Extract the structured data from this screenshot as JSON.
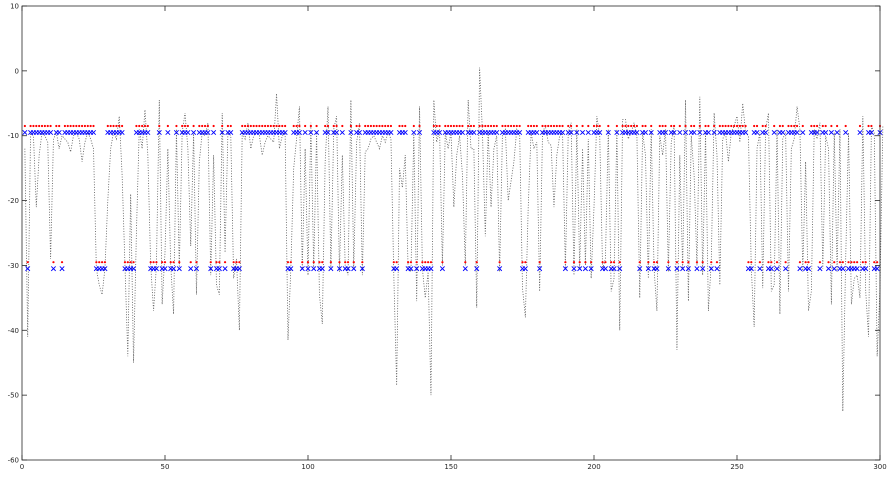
{
  "chart_data": {
    "type": "scatter",
    "title": "",
    "xlabel": "",
    "ylabel": "",
    "xlim": [
      0,
      300
    ],
    "ylim": [
      -60,
      10
    ],
    "xticks": [
      0,
      50,
      100,
      150,
      200,
      250,
      300
    ],
    "yticks": [
      -60,
      -50,
      -40,
      -30,
      -20,
      -10,
      0,
      10
    ],
    "xtick_labels": [
      "0",
      "50",
      "100",
      "150",
      "200",
      "250",
      "300"
    ],
    "ytick_labels": [
      "-60",
      "-50",
      "-40",
      "-30",
      "-20",
      "-10",
      "0",
      "10"
    ],
    "grid": false,
    "legend": "none",
    "series": [
      {
        "style": "dotted-line",
        "color": "#555555",
        "values": [
          -12,
          -41,
          -9.5,
          -10,
          -21,
          -13,
          -9.5,
          -10,
          -11,
          -29,
          -10.5,
          -9.5,
          -12,
          -10,
          -10.5,
          -11,
          -12.5,
          -10,
          -9.5,
          -10.5,
          -14,
          -11,
          -9.5,
          -10.5,
          -12,
          -30.5,
          -33,
          -34.5,
          -30.5,
          -20,
          -12,
          -9.5,
          -10.5,
          -7,
          -16,
          -30,
          -44,
          -19,
          -45,
          -25,
          -9,
          -12,
          -6,
          -13,
          -30,
          -37,
          -30,
          -4.5,
          -36,
          -28,
          -12,
          -30,
          -37.5,
          -9,
          -30.5,
          -9.5,
          -6.5,
          -12,
          -27,
          -9.5,
          -34.5,
          -14,
          -9.5,
          -10,
          -8,
          -31.5,
          -13,
          -33,
          -34.5,
          -6.5,
          -28,
          -9.5,
          -10,
          -32,
          -29,
          -40,
          -9.5,
          -10.5,
          -8,
          -12,
          -10,
          -9.5,
          -10,
          -13,
          -11,
          -10,
          -10.5,
          -11,
          -3.5,
          -12,
          -10,
          -9.5,
          -41.5,
          -30.5,
          -15,
          -10.5,
          -5.5,
          -30.5,
          -12,
          -31.5,
          -8,
          -30.5,
          -9.5,
          -34.5,
          -39,
          -14,
          -5.5,
          -30.5,
          -9,
          -7,
          -31,
          -13,
          -30,
          -31.5,
          -4.5,
          -30.5,
          -11,
          -8,
          -31.5,
          -12.5,
          -12,
          -10.5,
          -10,
          -11,
          -12,
          -10,
          -11,
          -9.5,
          -10.5,
          -31.5,
          -48.5,
          -15,
          -18,
          -13,
          -30.5,
          -31,
          -9.5,
          -35.5,
          -5.5,
          -30.5,
          -35,
          -31,
          -50,
          -4.5,
          -11,
          -9,
          -30,
          -9.5,
          -12,
          -9.5,
          -21,
          -13,
          -10,
          -16,
          -30,
          -4.5,
          -12,
          -12,
          -36.5,
          0.5,
          -9.5,
          -25.5,
          -9.5,
          -21,
          -12,
          -10,
          -31,
          -9.5,
          -9,
          -20,
          -17,
          -14,
          -9,
          -9.5,
          -33.5,
          -38,
          -21,
          -9.5,
          -12,
          -11,
          -34,
          -9.5,
          -8.5,
          -11,
          -11.5,
          -21,
          -13,
          -10,
          -9.5,
          -30.5,
          -9.5,
          -8,
          -31.5,
          -9,
          -30.5,
          -12,
          -30,
          -10.5,
          -32,
          -21,
          -7,
          -10,
          -30.5,
          -29,
          -9,
          -34,
          -32,
          -9,
          -40,
          -7.5,
          -7.5,
          -10.5,
          -9.5,
          -8,
          -10,
          -35,
          -9.5,
          -13,
          -32,
          -9,
          -30.5,
          -37,
          -10,
          -13,
          -9,
          -31,
          -11,
          -8.5,
          -43,
          -13,
          -30.5,
          -4.5,
          -35.5,
          -10,
          -16,
          -30,
          -4,
          -31.5,
          -9.5,
          -37,
          -29.5,
          -6.5,
          -13,
          -33,
          -10.5,
          -9.5,
          -14,
          -9.5,
          -8.5,
          -7,
          -11,
          -5,
          -9.5,
          -10,
          -30.5,
          -39.5,
          -12,
          -9.5,
          -33.5,
          -9,
          -6.5,
          -34,
          -33,
          -9,
          -37.5,
          -10.5,
          -9.5,
          -34,
          -12,
          -10.5,
          -5.5,
          -9,
          -31,
          -14,
          -37,
          -34,
          -9,
          -10.5,
          -8,
          -30.5,
          -10,
          -12,
          -36,
          -9.5,
          -31,
          -9,
          -52.5,
          -29,
          -9.5,
          -36,
          -32,
          -31.5,
          -35,
          -7,
          -34,
          -41,
          -8.5,
          -9.5,
          -44,
          -33.5,
          -8.5
        ]
      },
      {
        "style": "blue-x-markers",
        "color": "#0000ff",
        "values": [
          -9.5,
          -30.5,
          -9.5,
          -9.5,
          -9.5,
          -9.5,
          -9.5,
          -9.5,
          -9.5,
          -9.5,
          -30.5,
          -9.5,
          -9.5,
          -30.5,
          -9.5,
          -9.5,
          -9.5,
          -9.5,
          -9.5,
          -9.5,
          -9.5,
          -9.5,
          -9.5,
          -9.5,
          -9.5,
          -30.5,
          -30.5,
          -30.5,
          -30.5,
          -9.5,
          -9.5,
          -9.5,
          -9.5,
          -9.5,
          -9.5,
          -30.5,
          -30.5,
          -30.5,
          -30.5,
          -9.5,
          -9.5,
          -9.5,
          -9.5,
          -9.5,
          -30.5,
          -30.5,
          -30.5,
          -9.5,
          -30.5,
          -30.5,
          -9.5,
          -30.5,
          -30.5,
          -9.5,
          -30.5,
          -9.5,
          -9.5,
          -9.5,
          -30.5,
          -9.5,
          -30.5,
          -9.5,
          -9.5,
          -9.5,
          -9.5,
          -30.5,
          -9.5,
          -30.5,
          -30.5,
          -9.5,
          -30.5,
          -9.5,
          -9.5,
          -30.5,
          -30.5,
          -30.5,
          -9.5,
          -9.5,
          -9.5,
          -9.5,
          -9.5,
          -9.5,
          -9.5,
          -9.5,
          -9.5,
          -9.5,
          -9.5,
          -9.5,
          -9.5,
          -9.5,
          -9.5,
          -9.5,
          -30.5,
          -30.5,
          -9.5,
          -9.5,
          -9.5,
          -30.5,
          -9.5,
          -30.5,
          -9.5,
          -30.5,
          -9.5,
          -30.5,
          -30.5,
          -9.5,
          -9.5,
          -30.5,
          -9.5,
          -9.5,
          -30.5,
          -9.5,
          -30.5,
          -30.5,
          -9.5,
          -30.5,
          -9.5,
          -9.5,
          -30.5,
          -9.5,
          -9.5,
          -9.5,
          -9.5,
          -9.5,
          -9.5,
          -9.5,
          -9.5,
          -9.5,
          -9.5,
          -30.5,
          -30.5,
          -9.5,
          -9.5,
          -9.5,
          -30.5,
          -30.5,
          -9.5,
          -30.5,
          -9.5,
          -30.5,
          -30.5,
          -30.5,
          -30.5,
          -9.5,
          -9.5,
          -9.5,
          -30.5,
          -9.5,
          -9.5,
          -9.5,
          -9.5,
          -9.5,
          -9.5,
          -9.5,
          -30.5,
          -9.5,
          -9.5,
          -9.5,
          -30.5,
          -9.5,
          -9.5,
          -9.5,
          -9.5,
          -9.5,
          -9.5,
          -9.5,
          -30.5,
          -9.5,
          -9.5,
          -9.5,
          -9.5,
          -9.5,
          -9.5,
          -9.5,
          -30.5,
          -30.5,
          -9.5,
          -9.5,
          -9.5,
          -9.5,
          -30.5,
          -9.5,
          -9.5,
          -9.5,
          -9.5,
          -9.5,
          -9.5,
          -9.5,
          -9.5,
          -30.5,
          -9.5,
          -9.5,
          -30.5,
          -9.5,
          -30.5,
          -9.5,
          -30.5,
          -9.5,
          -30.5,
          -9.5,
          -9.5,
          -9.5,
          -30.5,
          -30.5,
          -9.5,
          -30.5,
          -30.5,
          -9.5,
          -30.5,
          -9.5,
          -9.5,
          -9.5,
          -9.5,
          -9.5,
          -9.5,
          -30.5,
          -9.5,
          -9.5,
          -30.5,
          -9.5,
          -30.5,
          -30.5,
          -9.5,
          -9.5,
          -9.5,
          -30.5,
          -9.5,
          -9.5,
          -30.5,
          -9.5,
          -30.5,
          -9.5,
          -30.5,
          -9.5,
          -9.5,
          -30.5,
          -9.5,
          -30.5,
          -9.5,
          -9.5,
          -30.5,
          -9.5,
          -30.5,
          -9.5,
          -9.5,
          -9.5,
          -9.5,
          -9.5,
          -9.5,
          -9.5,
          -9.5,
          -9.5,
          -9.5,
          -30.5,
          -30.5,
          -9.5,
          -9.5,
          -30.5,
          -9.5,
          -9.5,
          -30.5,
          -30.5,
          -9.5,
          -30.5,
          -9.5,
          -9.5,
          -30.5,
          -9.5,
          -9.5,
          -9.5,
          -9.5,
          -30.5,
          -9.5,
          -30.5,
          -30.5,
          -9.5,
          -9.5,
          -9.5,
          -30.5,
          -9.5,
          -9.5,
          -30.5,
          -9.5,
          -30.5,
          -9.5,
          -30.5,
          -30.5,
          -9.5,
          -30.5,
          -30.5,
          -30.5,
          -30.5,
          -9.5,
          -30.5,
          -30.5,
          -9.5,
          -9.5,
          -30.5,
          -30.5,
          -9.5
        ]
      },
      {
        "style": "red-dot-markers",
        "color": "#ff0000",
        "values": [
          -8.5,
          -29.5,
          -8.5,
          -8.5,
          -8.5,
          -8.5,
          -8.5,
          -8.5,
          -8.5,
          -8.5,
          -29.5,
          -8.5,
          -8.5,
          -29.5,
          -8.5,
          -8.5,
          -8.5,
          -8.5,
          -8.5,
          -8.5,
          -8.5,
          -8.5,
          -8.5,
          -8.5,
          -8.5,
          -29.5,
          -29.5,
          -29.5,
          -29.5,
          -8.5,
          -8.5,
          -8.5,
          -8.5,
          -8.5,
          -8.5,
          -29.5,
          -29.5,
          -29.5,
          -29.5,
          -8.5,
          -8.5,
          -8.5,
          -8.5,
          -8.5,
          -29.5,
          -29.5,
          -29.5,
          -8.5,
          -29.5,
          -29.5,
          -8.5,
          -29.5,
          -29.5,
          -8.5,
          -29.5,
          -8.5,
          -8.5,
          -8.5,
          -29.5,
          -8.5,
          -29.5,
          -8.5,
          -8.5,
          -8.5,
          -8.5,
          -29.5,
          -8.5,
          -29.5,
          -29.5,
          -8.5,
          -29.5,
          -8.5,
          -8.5,
          -29.5,
          -29.5,
          -29.5,
          -8.5,
          -8.5,
          -8.5,
          -8.5,
          -8.5,
          -8.5,
          -8.5,
          -8.5,
          -8.5,
          -8.5,
          -8.5,
          -8.5,
          -8.5,
          -8.5,
          -8.5,
          -8.5,
          -29.5,
          -29.5,
          -8.5,
          -8.5,
          -8.5,
          -29.5,
          -8.5,
          -29.5,
          -8.5,
          -29.5,
          -8.5,
          -29.5,
          -29.5,
          -8.5,
          -8.5,
          -29.5,
          -8.5,
          -8.5,
          -29.5,
          -8.5,
          -29.5,
          -29.5,
          -8.5,
          -29.5,
          -8.5,
          -8.5,
          -29.5,
          -8.5,
          -8.5,
          -8.5,
          -8.5,
          -8.5,
          -8.5,
          -8.5,
          -8.5,
          -8.5,
          -8.5,
          -29.5,
          -29.5,
          -8.5,
          -8.5,
          -8.5,
          -29.5,
          -29.5,
          -8.5,
          -29.5,
          -8.5,
          -29.5,
          -29.5,
          -29.5,
          -29.5,
          -8.5,
          -8.5,
          -8.5,
          -29.5,
          -8.5,
          -8.5,
          -8.5,
          -8.5,
          -8.5,
          -8.5,
          -8.5,
          -29.5,
          -8.5,
          -8.5,
          -8.5,
          -29.5,
          -8.5,
          -8.5,
          -8.5,
          -8.5,
          -8.5,
          -8.5,
          -8.5,
          -29.5,
          -8.5,
          -8.5,
          -8.5,
          -8.5,
          -8.5,
          -8.5,
          -8.5,
          -29.5,
          -29.5,
          -8.5,
          -8.5,
          -8.5,
          -8.5,
          -29.5,
          -8.5,
          -8.5,
          -8.5,
          -8.5,
          -8.5,
          -8.5,
          -8.5,
          -8.5,
          -29.5,
          -8.5,
          -8.5,
          -29.5,
          -8.5,
          -29.5,
          -8.5,
          -29.5,
          -8.5,
          -29.5,
          -8.5,
          -8.5,
          -8.5,
          -29.5,
          -29.5,
          -8.5,
          -29.5,
          -29.5,
          -8.5,
          -29.5,
          -8.5,
          -8.5,
          -8.5,
          -8.5,
          -8.5,
          -8.5,
          -29.5,
          -8.5,
          -8.5,
          -29.5,
          -8.5,
          -29.5,
          -29.5,
          -8.5,
          -8.5,
          -8.5,
          -29.5,
          -8.5,
          -8.5,
          -29.5,
          -8.5,
          -29.5,
          -8.5,
          -29.5,
          -8.5,
          -8.5,
          -29.5,
          -8.5,
          -29.5,
          -8.5,
          -8.5,
          -29.5,
          -8.5,
          -29.5,
          -8.5,
          -8.5,
          -8.5,
          -8.5,
          -8.5,
          -8.5,
          -8.5,
          -8.5,
          -8.5,
          -8.5,
          -29.5,
          -29.5,
          -8.5,
          -8.5,
          -29.5,
          -8.5,
          -8.5,
          -29.5,
          -29.5,
          -8.5,
          -29.5,
          -8.5,
          -8.5,
          -29.5,
          -8.5,
          -8.5,
          -8.5,
          -8.5,
          -29.5,
          -8.5,
          -29.5,
          -29.5,
          -8.5,
          -8.5,
          -8.5,
          -29.5,
          -8.5,
          -8.5,
          -29.5,
          -8.5,
          -29.5,
          -8.5,
          -29.5,
          -29.5,
          -8.5,
          -29.5,
          -29.5,
          -29.5,
          -29.5,
          -8.5,
          -29.5,
          -29.5,
          -8.5,
          -8.5,
          -29.5,
          -29.5,
          -8.5
        ]
      }
    ]
  }
}
